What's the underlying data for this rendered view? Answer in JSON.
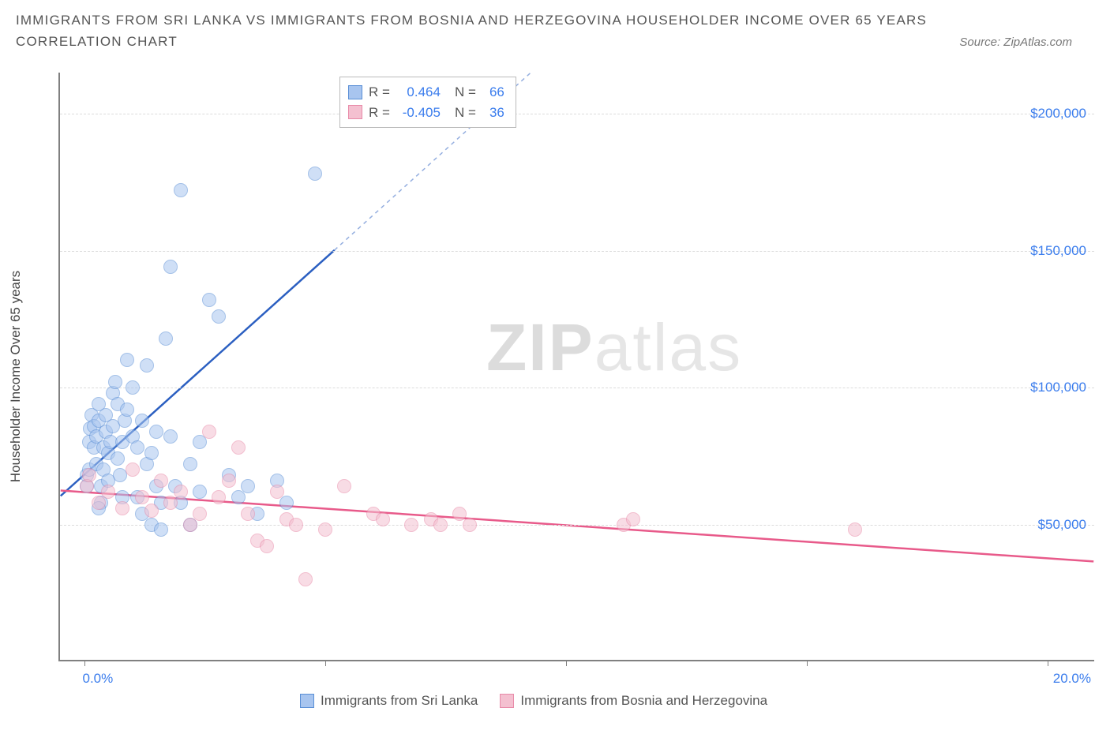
{
  "title_line1": "IMMIGRANTS FROM SRI LANKA VS IMMIGRANTS FROM BOSNIA AND HERZEGOVINA HOUSEHOLDER INCOME OVER 65 YEARS",
  "title_line2": "CORRELATION CHART",
  "source_prefix": "Source: ",
  "source_name": "ZipAtlas.com",
  "y_axis_title": "Householder Income Over 65 years",
  "watermark_bold": "ZIP",
  "watermark_light": "atlas",
  "chart": {
    "type": "scatter",
    "background_color": "#ffffff",
    "grid_color": "#dcdcdc",
    "axis_color": "#808080",
    "label_color": "#3b7ded",
    "x_domain": [
      -0.5,
      21.0
    ],
    "y_domain": [
      0,
      215000
    ],
    "y_ticks": [
      50000,
      100000,
      150000,
      200000
    ],
    "y_tick_labels": [
      "$50,000",
      "$100,000",
      "$150,000",
      "$200,000"
    ],
    "x_ticks": [
      0.0,
      5.0,
      10.0,
      15.0,
      20.0
    ],
    "x_tick_labels_shown": {
      "0.0": "0.0%",
      "20.0": "20.0%"
    },
    "dot_radius": 9,
    "dot_opacity": 0.55,
    "series": [
      {
        "name": "Immigrants from Sri Lanka",
        "color_fill": "#a8c5ef",
        "color_stroke": "#5a8fd6",
        "line_color": "#2b5fc1",
        "trend": {
          "x1": -0.5,
          "y1": 60000,
          "x2": 5.2,
          "y2": 150000,
          "dash_x2": 9.6,
          "dash_y2": 220000
        },
        "stats": {
          "R": "0.464",
          "N": "66"
        },
        "points": [
          [
            0.05,
            64000
          ],
          [
            0.05,
            68000
          ],
          [
            0.1,
            70000
          ],
          [
            0.1,
            80000
          ],
          [
            0.12,
            85000
          ],
          [
            0.15,
            90000
          ],
          [
            0.2,
            78000
          ],
          [
            0.2,
            86000
          ],
          [
            0.25,
            72000
          ],
          [
            0.25,
            82000
          ],
          [
            0.3,
            88000
          ],
          [
            0.3,
            94000
          ],
          [
            0.35,
            58000
          ],
          [
            0.35,
            64000
          ],
          [
            0.4,
            70000
          ],
          [
            0.4,
            78000
          ],
          [
            0.45,
            84000
          ],
          [
            0.45,
            90000
          ],
          [
            0.5,
            66000
          ],
          [
            0.5,
            76000
          ],
          [
            0.55,
            80000
          ],
          [
            0.6,
            86000
          ],
          [
            0.6,
            98000
          ],
          [
            0.65,
            102000
          ],
          [
            0.7,
            94000
          ],
          [
            0.7,
            74000
          ],
          [
            0.75,
            68000
          ],
          [
            0.8,
            80000
          ],
          [
            0.85,
            88000
          ],
          [
            0.9,
            92000
          ],
          [
            0.9,
            110000
          ],
          [
            1.0,
            100000
          ],
          [
            1.0,
            82000
          ],
          [
            1.1,
            78000
          ],
          [
            1.1,
            60000
          ],
          [
            1.2,
            88000
          ],
          [
            1.2,
            54000
          ],
          [
            1.3,
            72000
          ],
          [
            1.3,
            108000
          ],
          [
            1.4,
            76000
          ],
          [
            1.4,
            50000
          ],
          [
            1.5,
            64000
          ],
          [
            1.5,
            84000
          ],
          [
            1.6,
            58000
          ],
          [
            1.6,
            48000
          ],
          [
            1.7,
            118000
          ],
          [
            1.8,
            82000
          ],
          [
            1.8,
            144000
          ],
          [
            1.9,
            64000
          ],
          [
            2.0,
            172000
          ],
          [
            2.0,
            58000
          ],
          [
            2.2,
            72000
          ],
          [
            2.2,
            50000
          ],
          [
            2.4,
            62000
          ],
          [
            2.4,
            80000
          ],
          [
            2.6,
            132000
          ],
          [
            2.8,
            126000
          ],
          [
            3.0,
            68000
          ],
          [
            3.2,
            60000
          ],
          [
            3.4,
            64000
          ],
          [
            3.6,
            54000
          ],
          [
            4.0,
            66000
          ],
          [
            4.2,
            58000
          ],
          [
            4.8,
            178000
          ],
          [
            0.3,
            56000
          ],
          [
            0.8,
            60000
          ]
        ]
      },
      {
        "name": "Immigrants from Bosnia and Herzegovina",
        "color_fill": "#f4c0d0",
        "color_stroke": "#e88aa8",
        "line_color": "#e85a8a",
        "trend": {
          "x1": -0.5,
          "y1": 62000,
          "x2": 21.0,
          "y2": 36000
        },
        "stats": {
          "R": "-0.405",
          "N": "36"
        },
        "points": [
          [
            0.05,
            64000
          ],
          [
            0.3,
            58000
          ],
          [
            0.5,
            62000
          ],
          [
            0.8,
            56000
          ],
          [
            1.0,
            70000
          ],
          [
            1.2,
            60000
          ],
          [
            1.4,
            55000
          ],
          [
            1.6,
            66000
          ],
          [
            1.8,
            58000
          ],
          [
            2.0,
            62000
          ],
          [
            2.2,
            50000
          ],
          [
            2.4,
            54000
          ],
          [
            2.6,
            84000
          ],
          [
            2.8,
            60000
          ],
          [
            3.0,
            66000
          ],
          [
            3.2,
            78000
          ],
          [
            3.4,
            54000
          ],
          [
            3.6,
            44000
          ],
          [
            3.8,
            42000
          ],
          [
            4.0,
            62000
          ],
          [
            4.2,
            52000
          ],
          [
            4.4,
            50000
          ],
          [
            4.6,
            30000
          ],
          [
            5.0,
            48000
          ],
          [
            5.4,
            64000
          ],
          [
            6.0,
            54000
          ],
          [
            6.2,
            52000
          ],
          [
            6.8,
            50000
          ],
          [
            7.2,
            52000
          ],
          [
            7.4,
            50000
          ],
          [
            7.8,
            54000
          ],
          [
            8.0,
            50000
          ],
          [
            11.2,
            50000
          ],
          [
            11.4,
            52000
          ],
          [
            16.0,
            48000
          ],
          [
            0.1,
            68000
          ]
        ]
      }
    ]
  },
  "stats_box": {
    "rows": [
      {
        "swatch_fill": "#a8c5ef",
        "swatch_stroke": "#5a8fd6",
        "r_label": "R =",
        "r_val": "0.464",
        "n_label": "N =",
        "n_val": "66"
      },
      {
        "swatch_fill": "#f4c0d0",
        "swatch_stroke": "#e88aa8",
        "r_label": "R =",
        "r_val": "-0.405",
        "n_label": "N =",
        "n_val": "36"
      }
    ]
  },
  "legend": {
    "items": [
      {
        "swatch_fill": "#a8c5ef",
        "swatch_stroke": "#5a8fd6",
        "label": "Immigrants from Sri Lanka"
      },
      {
        "swatch_fill": "#f4c0d0",
        "swatch_stroke": "#e88aa8",
        "label": "Immigrants from Bosnia and Herzegovina"
      }
    ]
  }
}
